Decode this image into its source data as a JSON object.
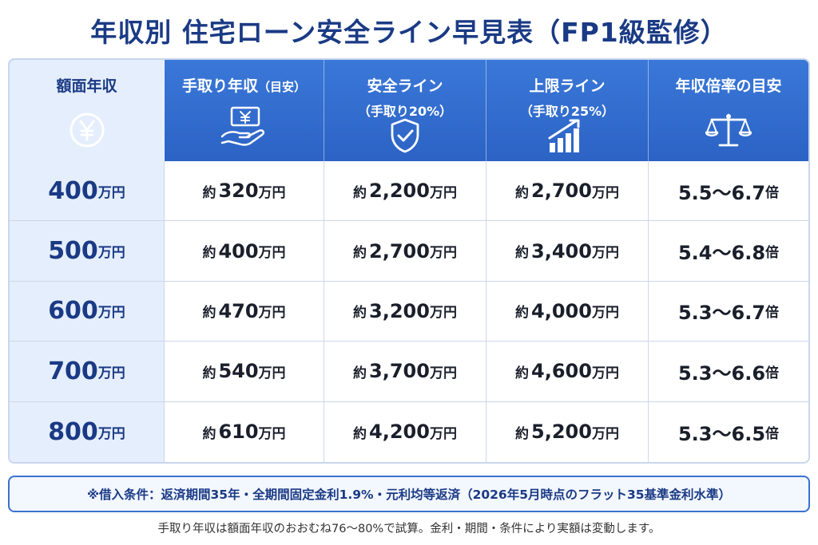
{
  "title": "年収別 住宅ローン安全ライン早見表（FP1級監修）",
  "header": {
    "col1": "額面年収",
    "col2_main": "手取り年収",
    "col2_small": "（目安）",
    "col3_main": "安全ライン",
    "col3_sub": "（手取り20%）",
    "col4_main": "上限ライン",
    "col4_sub": "（手取り25%）",
    "col5": "年収倍率の目安",
    "icons": [
      "yen-circle-icon",
      "money-hand-icon",
      "shield-check-icon",
      "bar-growth-icon",
      "balance-scale-icon"
    ]
  },
  "rows": [
    {
      "income_num": "400",
      "unit": "万円",
      "takehome_pre": "約",
      "takehome": "320",
      "safe": "2,200",
      "upper": "2,700",
      "ratio": "5.5～6.7",
      "ratio_unit": "倍"
    },
    {
      "income_num": "500",
      "unit": "万円",
      "takehome_pre": "約",
      "takehome": "400",
      "safe": "2,700",
      "upper": "3,400",
      "ratio": "5.4～6.8",
      "ratio_unit": "倍"
    },
    {
      "income_num": "600",
      "unit": "万円",
      "takehome_pre": "約",
      "takehome": "470",
      "safe": "3,200",
      "upper": "4,000",
      "ratio": "5.3～6.7",
      "ratio_unit": "倍"
    },
    {
      "income_num": "700",
      "unit": "万円",
      "takehome_pre": "約",
      "takehome": "540",
      "safe": "3,700",
      "upper": "4,600",
      "ratio": "5.3～6.6",
      "ratio_unit": "倍"
    },
    {
      "income_num": "800",
      "unit": "万円",
      "takehome_pre": "約",
      "takehome": "610",
      "safe": "4,200",
      "upper": "5,200",
      "ratio": "5.3～6.5",
      "ratio_unit": "倍"
    }
  ],
  "note": "※借入条件：返済期間35年・全期間固定金利1.9%・元利均等返済（2026年5月時点のフラット35基準金利水準）",
  "footer": "手取り年収は額面年収のおおむね76～80%で試算。金利・期間・条件により実額は変動します。",
  "colors": {
    "title": "#1a3a85",
    "header_bg": "#2f6ac9",
    "first_col_bg": "#e5eefc",
    "border": "#cdd7ea"
  }
}
